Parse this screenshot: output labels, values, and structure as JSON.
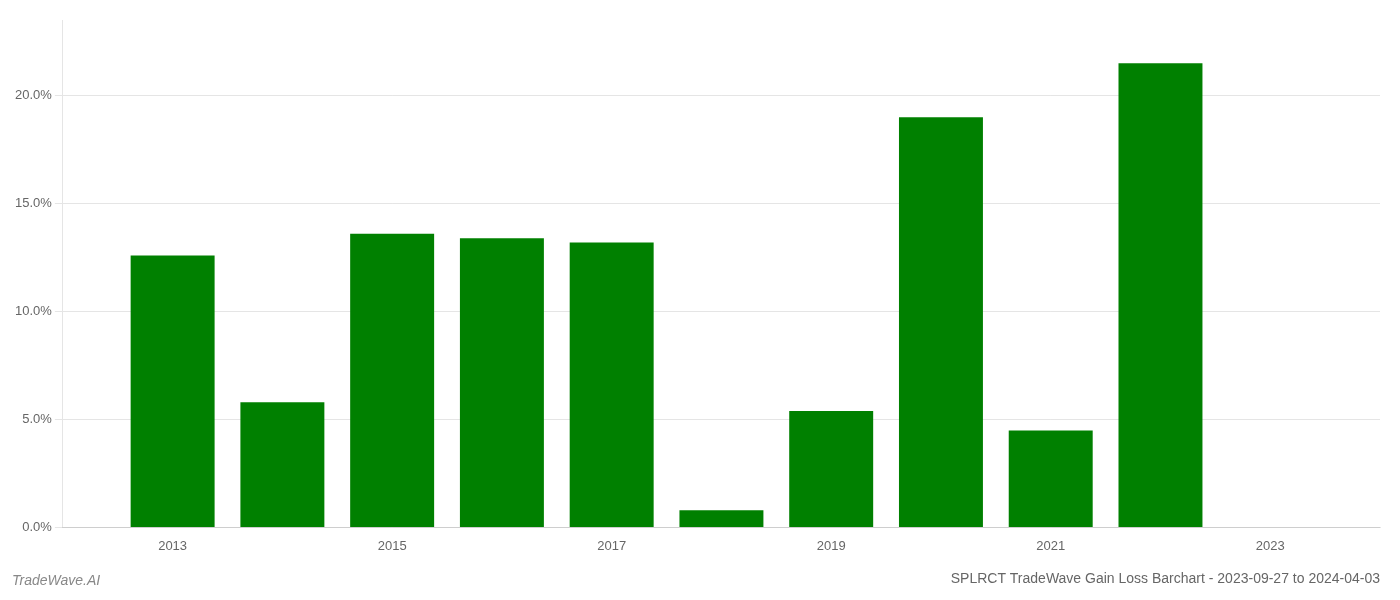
{
  "chart_data": {
    "type": "bar",
    "title": "SPLRCT TradeWave Gain Loss Barchart - 2023-09-27 to 2024-04-03",
    "annotations": [
      "TradeWave.AI"
    ],
    "x": [
      2013,
      2014,
      2015,
      2016,
      2017,
      2018,
      2019,
      2020,
      2021,
      2022
    ],
    "values": [
      0.126,
      0.058,
      0.136,
      0.134,
      0.132,
      0.008,
      0.054,
      0.19,
      0.045,
      0.215
    ],
    "color": "#008000",
    "xlim": [
      2012.0,
      2024.0
    ],
    "xticks": [
      2013,
      2015,
      2017,
      2019,
      2021,
      2023
    ],
    "ylim": [
      0,
      0.235
    ],
    "yticks": [
      {
        "value": 0.0,
        "label": "0.0%"
      },
      {
        "value": 0.05,
        "label": "5.0%"
      },
      {
        "value": 0.1,
        "label": "10.0%"
      },
      {
        "value": 0.15,
        "label": "15.0%"
      },
      {
        "value": 0.2,
        "label": "20.0%"
      }
    ],
    "grid": true
  }
}
